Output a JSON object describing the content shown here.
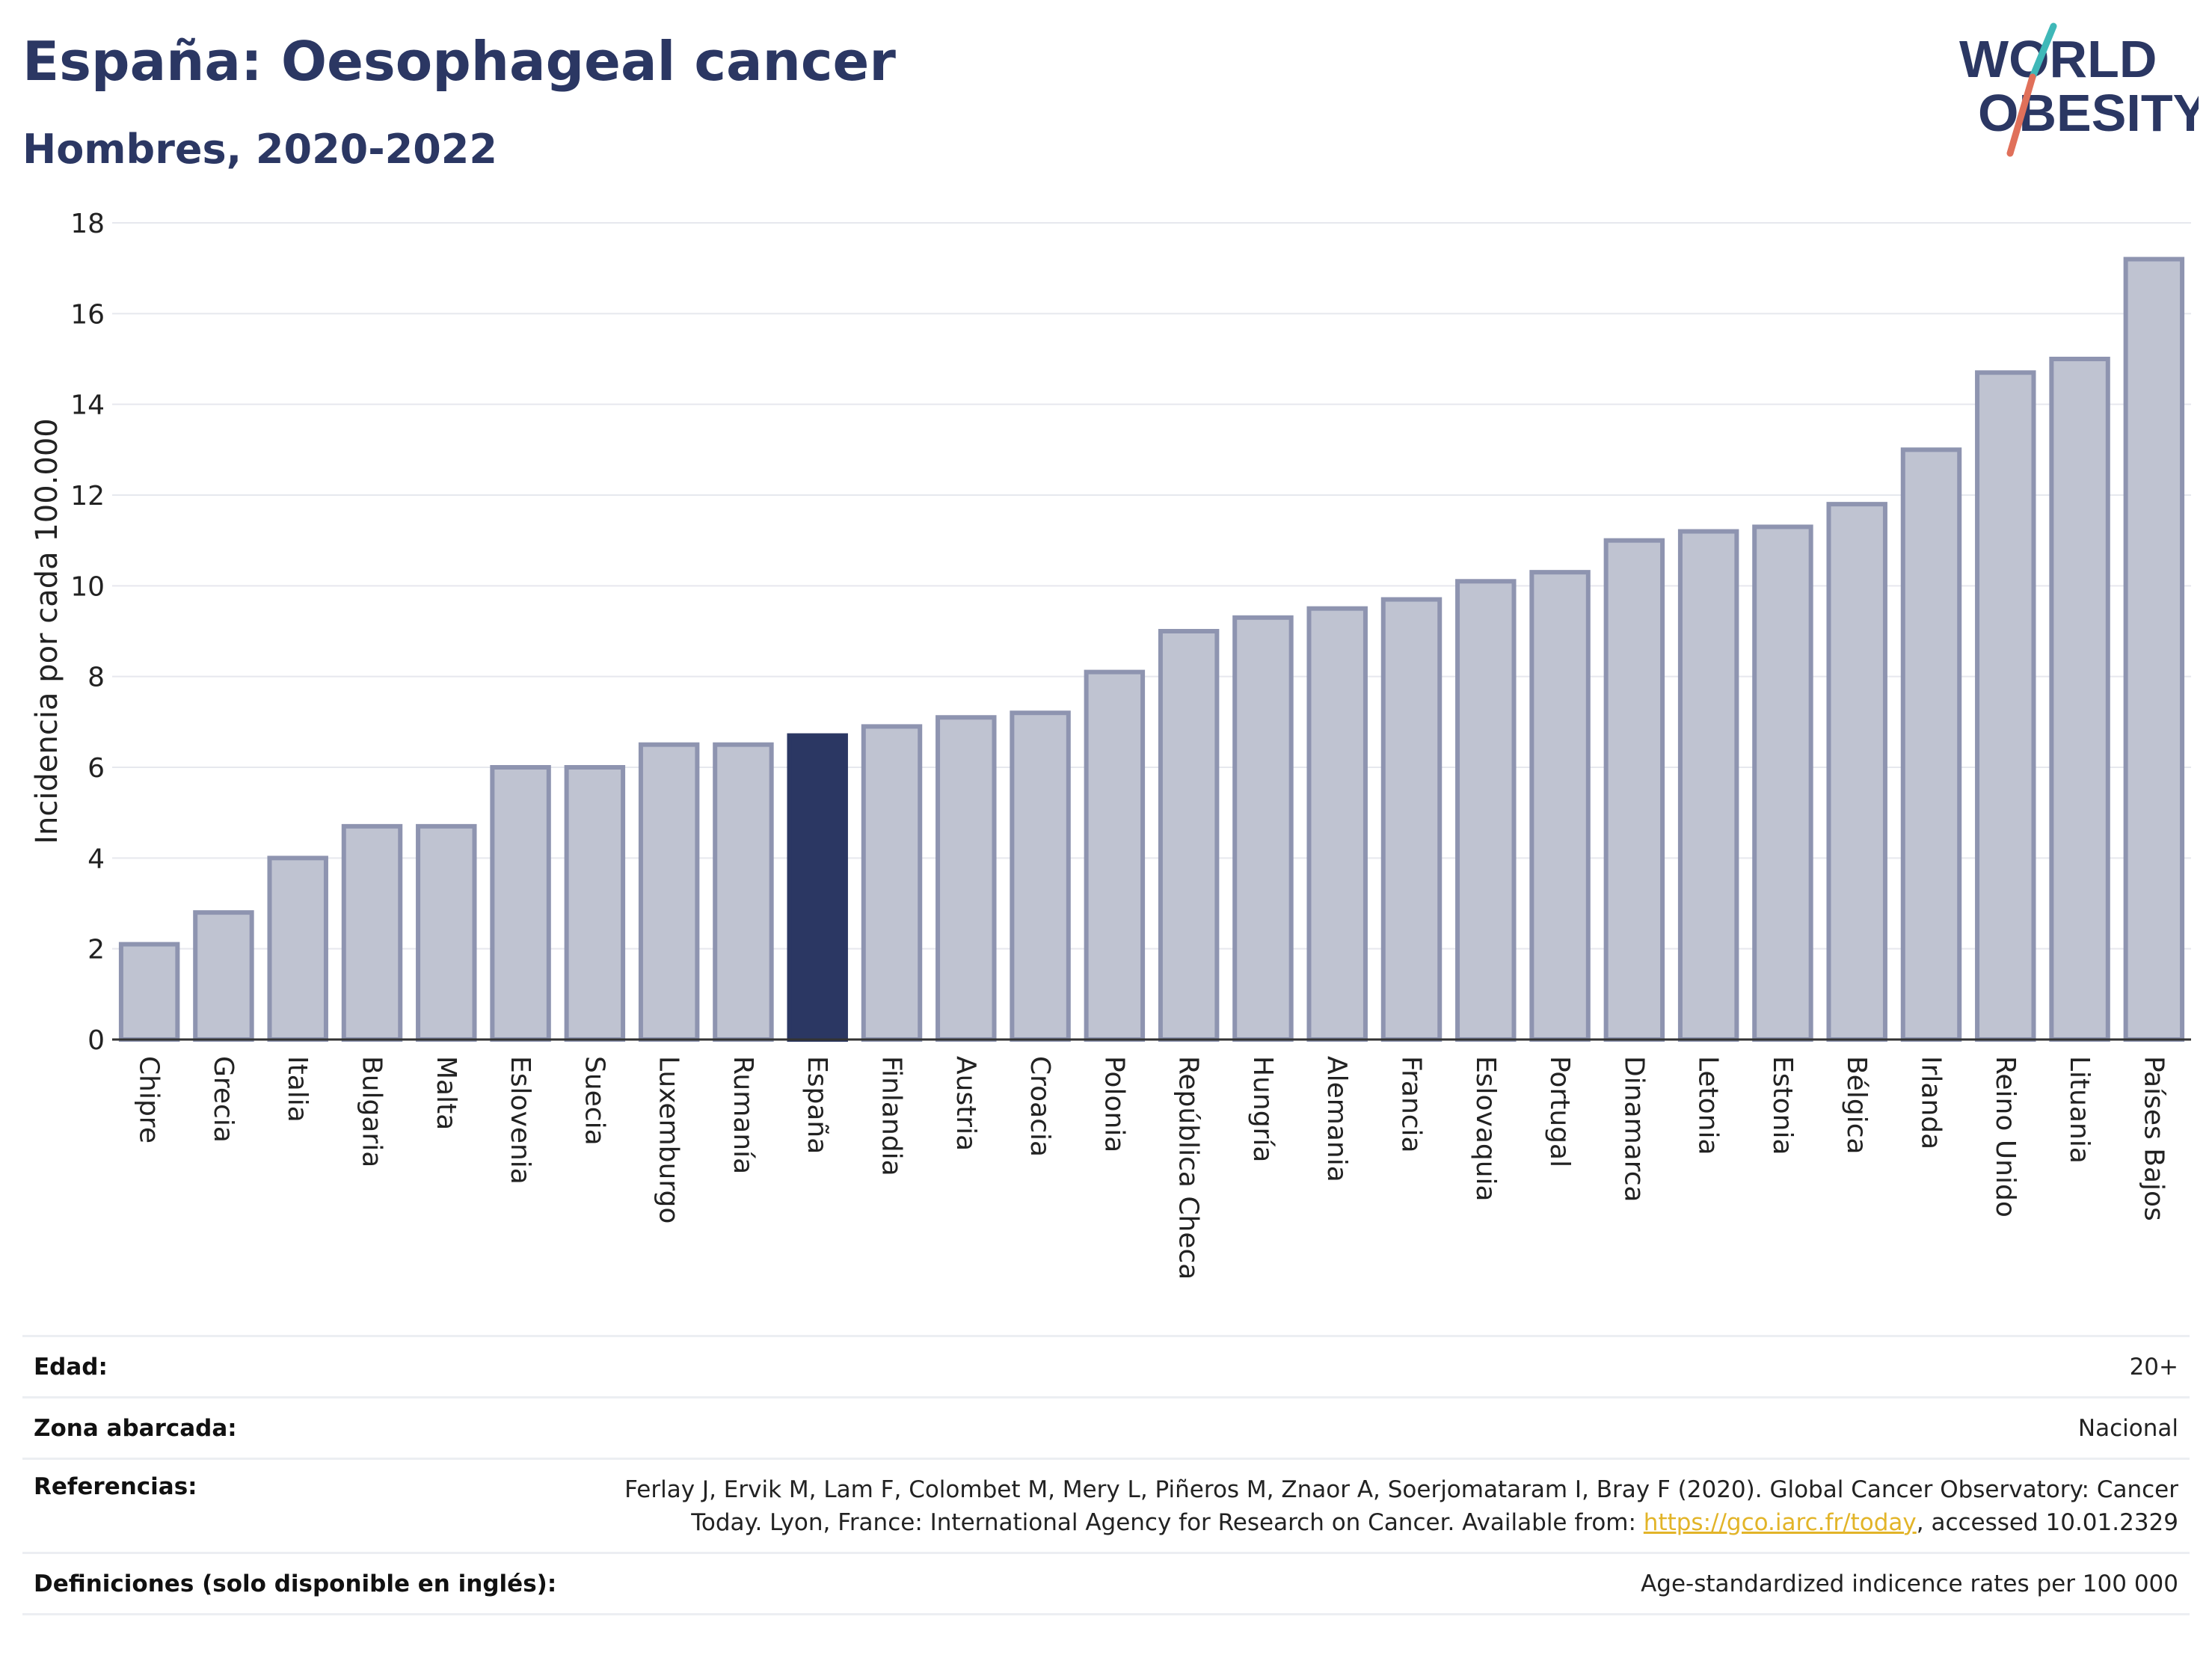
{
  "title": "España: Oesophageal cancer",
  "subtitle": "Hombres, 2020-2022",
  "logo": {
    "line1": "WORLD",
    "line2": "OBESITY",
    "accent_teal": "#3fb8b8",
    "accent_coral": "#e0705a"
  },
  "colors": {
    "bar": "#bfc3d1",
    "bar_stroke": "#8e94b0",
    "highlight": "#2b3763",
    "title": "#2b3763",
    "link": "#e2b428"
  },
  "chart_data": {
    "type": "bar",
    "ylabel": "Incidencia por cada 100.000",
    "xlabel": "",
    "ylim": [
      0,
      18
    ],
    "yticks": [
      0,
      2,
      4,
      6,
      8,
      10,
      12,
      14,
      16,
      18
    ],
    "grid": true,
    "highlight": "España",
    "categories": [
      "Chipre",
      "Grecia",
      "Italia",
      "Bulgaria",
      "Malta",
      "Eslovenia",
      "Suecia",
      "Luxemburgo",
      "Rumanía",
      "España",
      "Finlandia",
      "Austria",
      "Croacia",
      "Polonia",
      "República Checa",
      "Hungría",
      "Alemania",
      "Francia",
      "Eslovaquia",
      "Portugal",
      "Dinamarca",
      "Letonia",
      "Estonia",
      "Bélgica",
      "Irlanda",
      "Reino Unido",
      "Lituania",
      "Países Bajos"
    ],
    "values": [
      2.1,
      2.8,
      4.0,
      4.7,
      4.7,
      6.0,
      6.0,
      6.5,
      6.5,
      6.7,
      6.9,
      7.1,
      7.2,
      8.1,
      9.0,
      9.3,
      9.5,
      9.7,
      10.1,
      10.3,
      11.0,
      11.2,
      11.3,
      11.8,
      13.0,
      14.7,
      15.0,
      17.2
    ]
  },
  "info": {
    "age_label": "Edad:",
    "age_value": "20+",
    "area_label": "Zona abarcada:",
    "area_value": "Nacional",
    "ref_label": "Referencias:",
    "ref_line1": "Ferlay J, Ervik M, Lam F, Colombet M, Mery L, Piñeros M, Znaor A, Soerjomataram I, Bray F (2020). Global Cancer Observatory: Cancer",
    "ref_line2_pre": "Today. Lyon, France: International Agency for Research on Cancer. Available from: ",
    "ref_link": "https://gco.iarc.fr/today",
    "ref_line2_post": ", accessed 10.01.2329",
    "def_label": "Definiciones (solo disponible en inglés):",
    "def_value": "Age-standardized indicence rates per 100 000"
  }
}
